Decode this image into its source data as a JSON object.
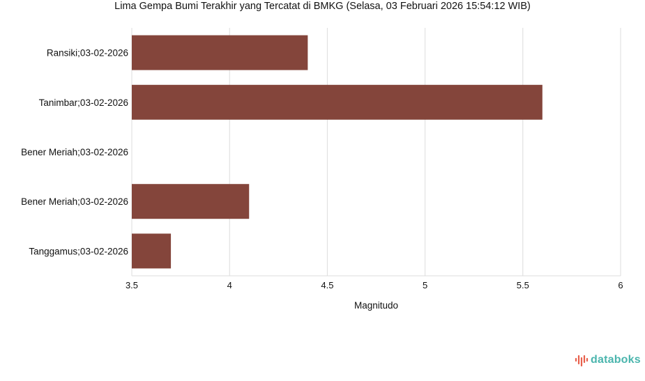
{
  "chart_data": {
    "type": "bar",
    "orientation": "horizontal",
    "title": "Lima Gempa Bumi Terakhir yang Tercatat di BMKG (Selasa, 03 Februari 2026 15:54:12 WIB)",
    "categories": [
      "Ransiki;03-02-2026",
      "Tanimbar;03-02-2026",
      "Bener Meriah;03-02-2026",
      "Bener Meriah;03-02-2026",
      "Tanggamus;03-02-2026"
    ],
    "values": [
      4.4,
      5.6,
      3.5,
      4.1,
      3.7
    ],
    "xlabel": "Magnitudo",
    "ylabel": "",
    "xlim": [
      3.5,
      6
    ],
    "xticks": [
      "3.5",
      "4",
      "4.5",
      "5",
      "5.5",
      "6"
    ],
    "grid": "vertical",
    "bar_color": "#84453b"
  },
  "branding": {
    "logo_text": "databoks",
    "logo_color": "#4ab5ad",
    "logo_icon_color": "#e8604c"
  }
}
